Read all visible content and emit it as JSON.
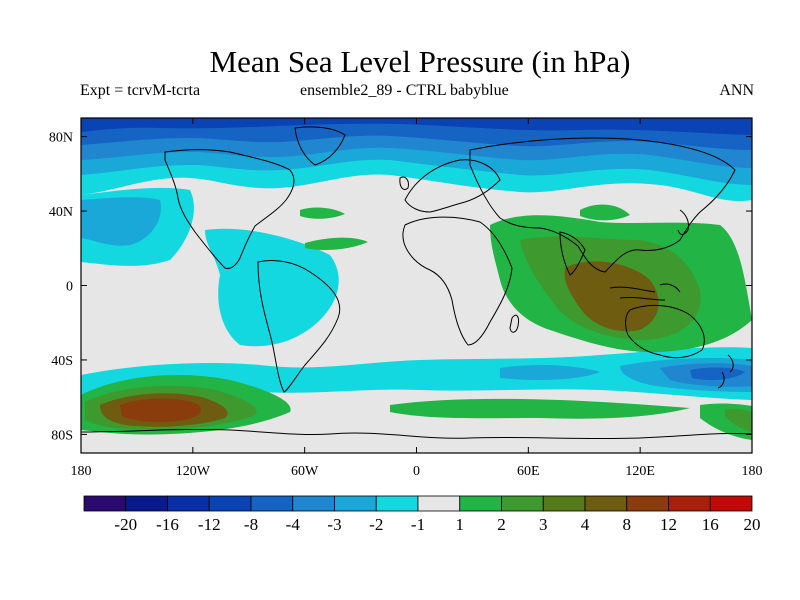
{
  "title": "Mean Sea Level Pressure (in hPa)",
  "subtitle_left": "Expt = tcrvM-tcrta",
  "subtitle_center": "ensemble2_89 - CTRL babyblue",
  "subtitle_right": "ANN",
  "lon_ticks": [
    "180",
    "120W",
    "60W",
    "0",
    "60E",
    "120E",
    "180"
  ],
  "lat_ticks": [
    "80N",
    "40N",
    "0",
    "40S",
    "80S"
  ],
  "colorbar": {
    "colors": [
      "#2a0a6e",
      "#0a1a8c",
      "#0a2ea8",
      "#0a44b4",
      "#1564c4",
      "#1f86cf",
      "#1aa8d8",
      "#14d8e0",
      "#e6e6e6",
      "#22b445",
      "#3e9a2e",
      "#557a1a",
      "#6e5c10",
      "#8a3c0c",
      "#a8200c",
      "#c00a0a"
    ],
    "labels": [
      "-20",
      "-16",
      "-12",
      "-8",
      "-4",
      "-3",
      "-2",
      "-1",
      "1",
      "2",
      "3",
      "4",
      "8",
      "12",
      "16",
      "20"
    ]
  },
  "colors": {
    "neutral": "#e6e6e6",
    "neg1": "#14d8e0",
    "neg2": "#1aa8d8",
    "neg3": "#1f86cf",
    "neg4": "#1564c4",
    "neg5": "#0a44b4",
    "pos1": "#22b445",
    "pos2": "#3e9a2e",
    "pos3": "#6e5c10",
    "pos4": "#8a3c0c"
  }
}
